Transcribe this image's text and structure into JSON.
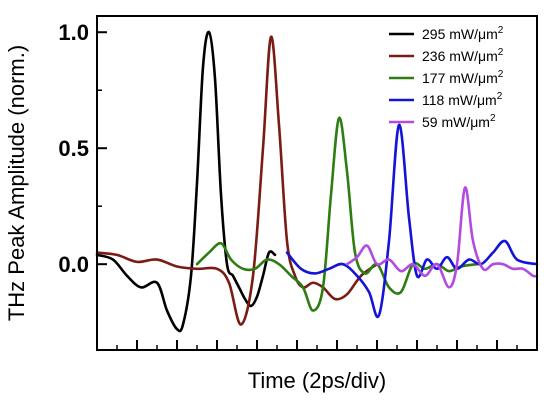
{
  "chart_data": {
    "type": "line",
    "xlabel": "Time (2ps/div)",
    "ylabel": "THz Peak Amplitude (norm.)",
    "xlim": [
      0,
      22
    ],
    "ylim": [
      -0.37,
      1.07
    ],
    "yticks": [
      0.0,
      0.5,
      1.0
    ],
    "ytick_labels": [
      "0.0",
      "0.5",
      "1.0"
    ],
    "x_major_ticks": [
      0,
      2,
      4,
      6,
      8,
      10,
      12,
      14,
      16,
      18,
      20,
      22
    ],
    "x_minor_ticks": [
      1,
      3,
      5,
      7,
      9,
      11,
      13,
      15,
      17,
      19,
      21
    ],
    "legend_position": "top-right",
    "series": [
      {
        "name": "295 mW/μm",
        "name_sup": "2",
        "color": "#000000",
        "x": [
          0.0,
          0.8,
          1.5,
          2.2,
          3.0,
          3.5,
          4.0,
          4.3,
          4.7,
          5.0,
          5.3,
          5.6,
          5.9,
          6.2,
          6.5,
          6.8,
          7.1,
          7.4,
          7.7,
          8.0,
          8.3,
          8.6,
          8.9
        ],
        "y": [
          0.04,
          0.02,
          -0.05,
          -0.1,
          -0.08,
          -0.2,
          -0.28,
          -0.26,
          -0.05,
          0.35,
          0.85,
          1.0,
          0.8,
          0.3,
          0.0,
          -0.05,
          -0.1,
          -0.15,
          -0.18,
          -0.14,
          -0.05,
          0.05,
          0.04
        ]
      },
      {
        "name": "236 mW/μm",
        "name_sup": "2",
        "color": "#7b1c14",
        "x": [
          0.0,
          1.0,
          2.0,
          3.0,
          4.0,
          5.0,
          6.0,
          6.6,
          7.2,
          7.8,
          8.3,
          8.7,
          9.1,
          9.5,
          9.9,
          10.3,
          10.8,
          11.3,
          11.9,
          12.5,
          13.2,
          14.0
        ],
        "y": [
          0.05,
          0.04,
          0.01,
          0.02,
          -0.01,
          -0.02,
          -0.02,
          -0.08,
          -0.26,
          -0.05,
          0.5,
          0.98,
          0.6,
          0.1,
          -0.05,
          -0.1,
          -0.08,
          -0.1,
          -0.15,
          -0.13,
          -0.05,
          0.0
        ]
      },
      {
        "name": "177 mW/μm",
        "name_sup": "2",
        "color": "#2e7d12",
        "x": [
          5.0,
          5.6,
          6.2,
          6.7,
          7.3,
          7.9,
          8.5,
          9.1,
          9.7,
          10.3,
          10.8,
          11.3,
          11.7,
          12.1,
          12.5,
          12.9,
          13.4,
          14.0,
          14.6,
          15.2,
          15.8,
          16.4,
          17.0,
          17.6,
          18.2,
          19.0
        ],
        "y": [
          0.0,
          0.05,
          0.09,
          0.02,
          -0.02,
          -0.02,
          0.02,
          0.0,
          -0.05,
          -0.1,
          -0.2,
          -0.1,
          0.3,
          0.63,
          0.4,
          0.05,
          -0.04,
          0.0,
          -0.1,
          -0.12,
          0.0,
          -0.02,
          0.0,
          -0.03,
          -0.01,
          0.0
        ]
      },
      {
        "name": "118 mW/μm",
        "name_sup": "2",
        "color": "#1414d8",
        "x": [
          9.5,
          10.2,
          10.9,
          11.6,
          12.3,
          13.0,
          13.6,
          14.1,
          14.6,
          15.1,
          15.6,
          16.0,
          16.5,
          17.0,
          17.5,
          18.0,
          18.6,
          19.2,
          19.8,
          20.4,
          21.0,
          22.0
        ],
        "y": [
          0.05,
          -0.02,
          -0.04,
          -0.02,
          0.0,
          -0.05,
          -0.12,
          -0.22,
          0.1,
          0.6,
          0.2,
          -0.05,
          0.02,
          -0.02,
          0.03,
          -0.02,
          0.02,
          0.0,
          0.05,
          0.1,
          0.02,
          0.0
        ]
      },
      {
        "name": "59 mW/μm",
        "name_sup": "2",
        "color": "#b44be0",
        "x": [
          12.5,
          13.0,
          13.5,
          14.0,
          14.6,
          15.2,
          15.8,
          16.4,
          17.0,
          17.6,
          18.0,
          18.4,
          18.8,
          19.3,
          19.8,
          20.3,
          20.8,
          21.3,
          21.8,
          22.0
        ],
        "y": [
          0.0,
          0.03,
          0.08,
          0.0,
          0.02,
          -0.03,
          0.0,
          -0.05,
          0.0,
          -0.1,
          0.0,
          0.33,
          0.1,
          -0.02,
          0.0,
          0.0,
          -0.02,
          -0.02,
          -0.05,
          -0.05
        ]
      }
    ]
  }
}
